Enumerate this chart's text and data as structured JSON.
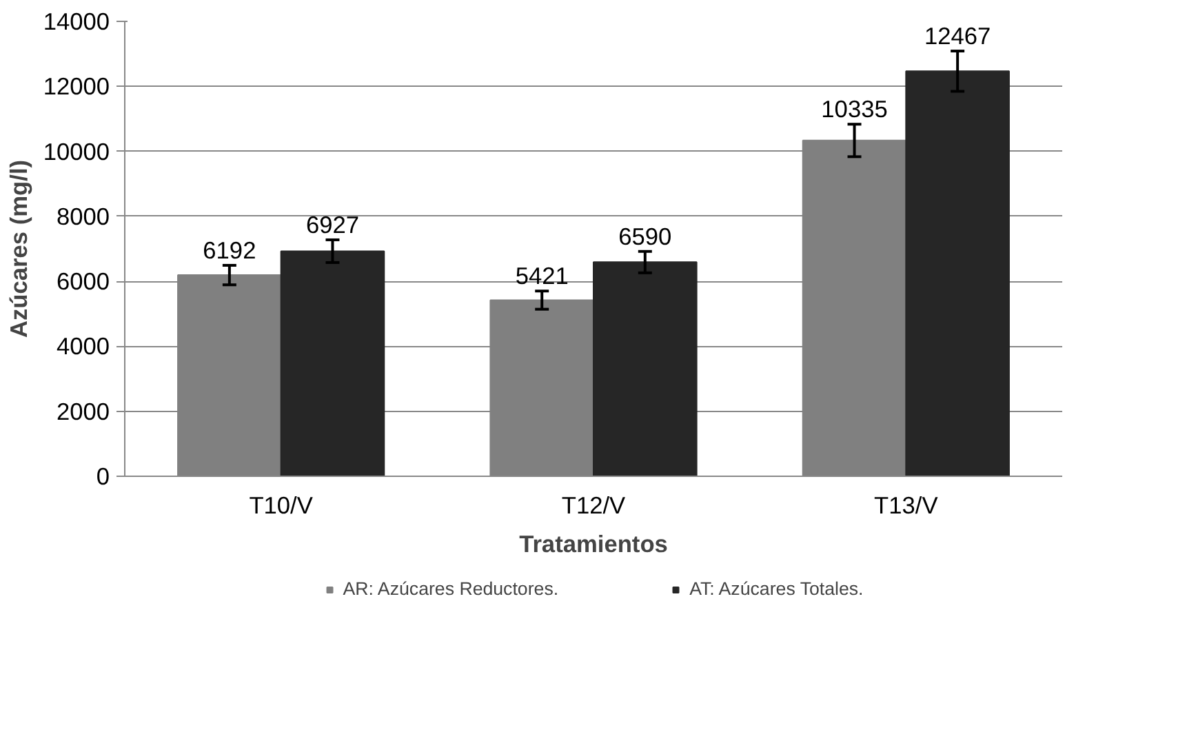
{
  "chart_data": {
    "type": "bar",
    "xlabel": "Tratamientos",
    "ylabel": "Azúcares (mg/l)",
    "categories": [
      "T10/V",
      "T12/V",
      "T13/V"
    ],
    "series": [
      {
        "name": "AR: Azúcares Reductores.",
        "color": "#808080",
        "values": [
          6192,
          5421,
          10335
        ],
        "errors": [
          300,
          280,
          500
        ]
      },
      {
        "name": "AT: Azúcares Totales.",
        "color": "#262626",
        "values": [
          6927,
          6590,
          12467
        ],
        "errors": [
          350,
          330,
          620
        ]
      }
    ],
    "ylim": [
      0,
      14000
    ],
    "yticks": [
      0,
      2000,
      4000,
      6000,
      8000,
      10000,
      12000,
      14000
    ],
    "grid": "y",
    "legend": "bottom",
    "data_labels": true
  }
}
